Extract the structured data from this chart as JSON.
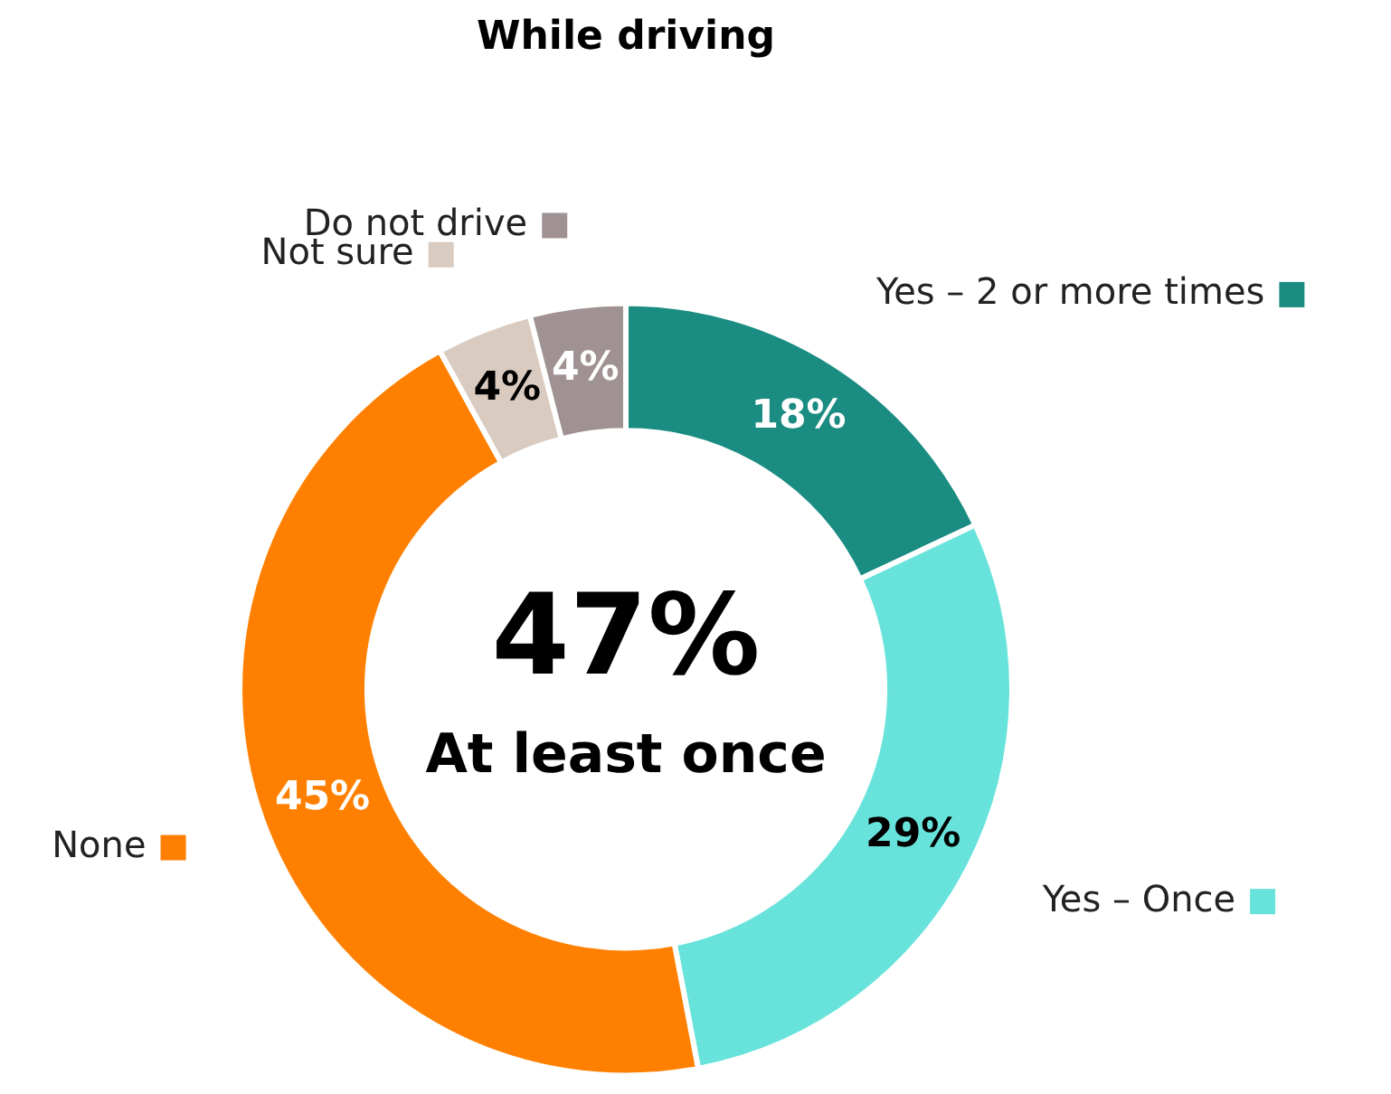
{
  "chart_data": {
    "type": "donut",
    "title": "While driving",
    "categories": [
      "Yes – 2 or more times",
      "Yes – Once",
      "None",
      "Not sure",
      "Do not drive"
    ],
    "values": [
      18,
      29,
      45,
      4,
      4
    ],
    "colors": [
      "#1a8c82",
      "#68e3db",
      "#ff8000",
      "#d9cbbf",
      "#a09292"
    ],
    "value_labels": [
      "18%",
      "29%",
      "45%",
      "4%",
      "4%"
    ],
    "annotations": [
      "47%",
      "At least once"
    ],
    "legend": "top right"
  }
}
